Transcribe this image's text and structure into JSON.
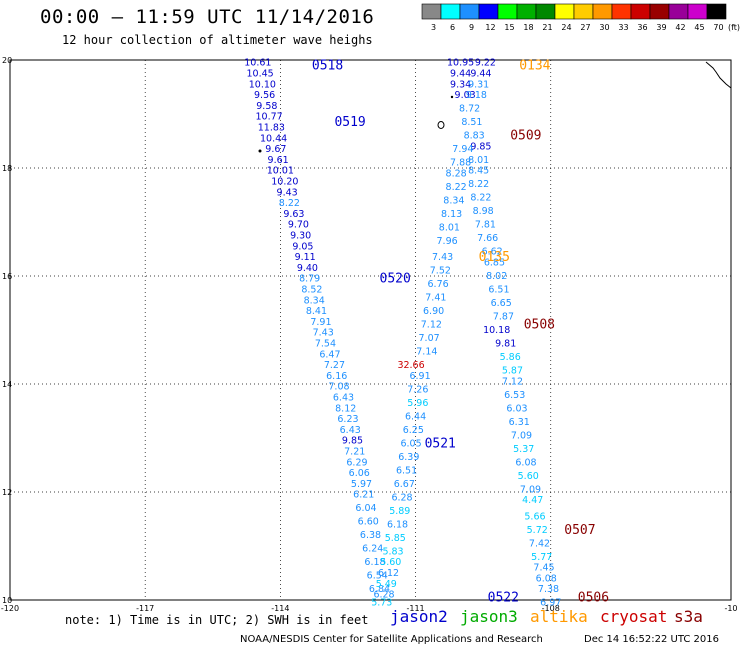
{
  "header": {
    "title": "00:00 – 11:59 UTC 11/14/2016",
    "subtitle": "12 hour collection of altimeter wave heighs"
  },
  "colorbar": {
    "unit": "(ft)",
    "bins": [
      {
        "label": "3",
        "color": "#888888"
      },
      {
        "label": "6",
        "color": "#00ffff"
      },
      {
        "label": "9",
        "color": "#1e90ff"
      },
      {
        "label": "12",
        "color": "#0000ff"
      },
      {
        "label": "15",
        "color": "#00ff00"
      },
      {
        "label": "18",
        "color": "#00b000"
      },
      {
        "label": "21",
        "color": "#008800"
      },
      {
        "label": "24",
        "color": "#ffff00"
      },
      {
        "label": "27",
        "color": "#ffcc00"
      },
      {
        "label": "30",
        "color": "#ff9900"
      },
      {
        "label": "33",
        "color": "#ff3300"
      },
      {
        "label": "36",
        "color": "#cc0000"
      },
      {
        "label": "39",
        "color": "#990000"
      },
      {
        "label": "42",
        "color": "#990099"
      },
      {
        "label": "45",
        "color": "#cc00cc"
      },
      {
        "label": "70",
        "color": "#000000"
      }
    ]
  },
  "axes": {
    "lon_range": [
      -120,
      -104
    ],
    "lat_range": [
      10,
      20
    ],
    "lon_ticks": [
      "-120",
      "-117",
      "-114",
      "-111",
      "-108",
      "-10"
    ],
    "lat_ticks": [
      "20",
      "18",
      "16",
      "14",
      "12",
      "10"
    ]
  },
  "satellites": {
    "jason2": {
      "name": "jason2",
      "color": "#0000cc"
    },
    "jason3": {
      "name": "jason3",
      "color": "#00aa00"
    },
    "altika": {
      "name": "altika",
      "color": "#ff9900"
    },
    "cryosat": {
      "name": "cryosat",
      "color": "#cc0000"
    },
    "s3a": {
      "name": "s3a",
      "color": "#880000"
    }
  },
  "pass_labels": [
    {
      "text": "0518",
      "lon": -113.3,
      "lat": 19.9,
      "sat": "jason2"
    },
    {
      "text": "0519",
      "lon": -112.8,
      "lat": 18.85,
      "sat": "jason2"
    },
    {
      "text": "0520",
      "lon": -111.8,
      "lat": 15.95,
      "sat": "jason2"
    },
    {
      "text": "0521",
      "lon": -110.8,
      "lat": 12.9,
      "sat": "jason2"
    },
    {
      "text": "0522",
      "lon": -109.4,
      "lat": 10.05,
      "sat": "jason2"
    },
    {
      "text": "0134",
      "lon": -108.7,
      "lat": 19.9,
      "sat": "altika"
    },
    {
      "text": "0135",
      "lon": -109.6,
      "lat": 16.35,
      "sat": "altika"
    },
    {
      "text": "0509",
      "lon": -108.9,
      "lat": 18.6,
      "sat": "s3a"
    },
    {
      "text": "0508",
      "lon": -108.6,
      "lat": 15.1,
      "sat": "s3a"
    },
    {
      "text": "0507",
      "lon": -107.7,
      "lat": 11.3,
      "sat": "s3a"
    },
    {
      "text": "0506",
      "lon": -107.4,
      "lat": 10.05,
      "sat": "s3a"
    }
  ],
  "tracks": [
    {
      "name": "jason2-descending",
      "points": [
        {
          "v": "10.61",
          "lon": -114.5,
          "lat": 19.95,
          "c": "#0000cc"
        },
        {
          "v": "10.45",
          "lon": -114.45,
          "lat": 19.75,
          "c": "#0000cc"
        },
        {
          "v": "10.10",
          "lon": -114.4,
          "lat": 19.55,
          "c": "#0000cc"
        },
        {
          "v": "9.56",
          "lon": -114.35,
          "lat": 19.35,
          "c": "#0000cc"
        },
        {
          "v": "9.58",
          "lon": -114.3,
          "lat": 19.15,
          "c": "#0000cc"
        },
        {
          "v": "10.77",
          "lon": -114.25,
          "lat": 18.95,
          "c": "#0000cc"
        },
        {
          "v": "11.83",
          "lon": -114.2,
          "lat": 18.75,
          "c": "#0000cc"
        },
        {
          "v": "10.44",
          "lon": -114.15,
          "lat": 18.55,
          "c": "#0000cc"
        },
        {
          "v": "9.67",
          "lon": -114.1,
          "lat": 18.35,
          "c": "#0000cc"
        },
        {
          "v": "9.61",
          "lon": -114.05,
          "lat": 18.15,
          "c": "#0000cc"
        },
        {
          "v": "10.01",
          "lon": -114.0,
          "lat": 17.95,
          "c": "#0000cc"
        },
        {
          "v": "10.20",
          "lon": -113.9,
          "lat": 17.75,
          "c": "#0000cc"
        },
        {
          "v": "9.43",
          "lon": -113.85,
          "lat": 17.55,
          "c": "#0000cc"
        },
        {
          "v": "8.22",
          "lon": -113.8,
          "lat": 17.35,
          "c": "#1e90ff"
        },
        {
          "v": "9.63",
          "lon": -113.7,
          "lat": 17.15,
          "c": "#0000cc"
        },
        {
          "v": "9.70",
          "lon": -113.6,
          "lat": 16.95,
          "c": "#0000cc"
        },
        {
          "v": "9.30",
          "lon": -113.55,
          "lat": 16.75,
          "c": "#0000cc"
        },
        {
          "v": "9.05",
          "lon": -113.5,
          "lat": 16.55,
          "c": "#0000cc"
        },
        {
          "v": "9.11",
          "lon": -113.45,
          "lat": 16.35,
          "c": "#0000cc"
        },
        {
          "v": "9.40",
          "lon": -113.4,
          "lat": 16.15,
          "c": "#0000cc"
        },
        {
          "v": "8.79",
          "lon": -113.35,
          "lat": 15.95,
          "c": "#1e90ff"
        },
        {
          "v": "8.52",
          "lon": -113.3,
          "lat": 15.75,
          "c": "#1e90ff"
        },
        {
          "v": "8.34",
          "lon": -113.25,
          "lat": 15.55,
          "c": "#1e90ff"
        },
        {
          "v": "8.41",
          "lon": -113.2,
          "lat": 15.35,
          "c": "#1e90ff"
        },
        {
          "v": "7.91",
          "lon": -113.1,
          "lat": 15.15,
          "c": "#1e90ff"
        },
        {
          "v": "7.43",
          "lon": -113.05,
          "lat": 14.95,
          "c": "#1e90ff"
        },
        {
          "v": "7.54",
          "lon": -113.0,
          "lat": 14.75,
          "c": "#1e90ff"
        },
        {
          "v": "6.47",
          "lon": -112.9,
          "lat": 14.55,
          "c": "#1e90ff"
        },
        {
          "v": "7.27",
          "lon": -112.8,
          "lat": 14.35,
          "c": "#1e90ff"
        },
        {
          "v": "6.16",
          "lon": -112.75,
          "lat": 14.15,
          "c": "#1e90ff"
        },
        {
          "v": "7.08",
          "lon": -112.7,
          "lat": 13.95,
          "c": "#1e90ff"
        },
        {
          "v": "6.43",
          "lon": -112.6,
          "lat": 13.75,
          "c": "#1e90ff"
        },
        {
          "v": "8.12",
          "lon": -112.55,
          "lat": 13.55,
          "c": "#1e90ff"
        },
        {
          "v": "6.23",
          "lon": -112.5,
          "lat": 13.35,
          "c": "#1e90ff"
        },
        {
          "v": "6.43",
          "lon": -112.45,
          "lat": 13.15,
          "c": "#1e90ff"
        },
        {
          "v": "9.85",
          "lon": -112.4,
          "lat": 12.95,
          "c": "#0000cc"
        },
        {
          "v": "7.21",
          "lon": -112.35,
          "lat": 12.75,
          "c": "#1e90ff"
        },
        {
          "v": "6.29",
          "lon": -112.3,
          "lat": 12.55,
          "c": "#1e90ff"
        },
        {
          "v": "6.06",
          "lon": -112.25,
          "lat": 12.35,
          "c": "#1e90ff"
        },
        {
          "v": "5.97",
          "lon": -112.2,
          "lat": 12.15,
          "c": "#1e90ff"
        },
        {
          "v": "6.21",
          "lon": -112.15,
          "lat": 11.95,
          "c": "#1e90ff"
        },
        {
          "v": "6.04",
          "lon": -112.1,
          "lat": 11.7,
          "c": "#1e90ff"
        },
        {
          "v": "6.60",
          "lon": -112.05,
          "lat": 11.45,
          "c": "#1e90ff"
        },
        {
          "v": "6.38",
          "lon": -112.0,
          "lat": 11.2,
          "c": "#1e90ff"
        },
        {
          "v": "6.24",
          "lon": -111.95,
          "lat": 10.95,
          "c": "#1e90ff"
        },
        {
          "v": "6.18",
          "lon": -111.9,
          "lat": 10.7,
          "c": "#1e90ff"
        },
        {
          "v": "6.54",
          "lon": -111.85,
          "lat": 10.45,
          "c": "#1e90ff"
        },
        {
          "v": "6.84",
          "lon": -111.8,
          "lat": 10.2,
          "c": "#1e90ff"
        }
      ]
    },
    {
      "name": "altika-track",
      "points": [
        {
          "v": "10.95",
          "lon": -110.0,
          "lat": 19.95,
          "c": "#0000cc"
        },
        {
          "v": "9.22",
          "lon": -109.45,
          "lat": 19.95,
          "c": "#0000cc"
        },
        {
          "v": "9.44",
          "lon": -110.0,
          "lat": 19.75,
          "c": "#0000cc"
        },
        {
          "v": "9.44",
          "lon": -109.55,
          "lat": 19.75,
          "c": "#0000cc"
        },
        {
          "v": "9.34",
          "lon": -110.0,
          "lat": 19.55,
          "c": "#0000cc"
        },
        {
          "v": "9.31",
          "lon": -109.6,
          "lat": 19.55,
          "c": "#1e90ff"
        },
        {
          "v": "9.03",
          "lon": -109.9,
          "lat": 19.35,
          "c": "#0000cc"
        },
        {
          "v": "9.18",
          "lon": -109.65,
          "lat": 19.35,
          "c": "#1e90ff"
        },
        {
          "v": "8.72",
          "lon": -109.8,
          "lat": 19.1,
          "c": "#1e90ff"
        },
        {
          "v": "8.51",
          "lon": -109.75,
          "lat": 18.85,
          "c": "#1e90ff"
        },
        {
          "v": "8.83",
          "lon": -109.7,
          "lat": 18.6,
          "c": "#1e90ff"
        },
        {
          "v": "9.85",
          "lon": -109.55,
          "lat": 18.4,
          "c": "#0000cc"
        },
        {
          "v": "7.94",
          "lon": -109.95,
          "lat": 18.35,
          "c": "#1e90ff"
        },
        {
          "v": "8.01",
          "lon": -109.6,
          "lat": 18.15,
          "c": "#1e90ff"
        },
        {
          "v": "7.88",
          "lon": -110.0,
          "lat": 18.1,
          "c": "#1e90ff"
        },
        {
          "v": "8.45",
          "lon": -109.6,
          "lat": 17.95,
          "c": "#1e90ff"
        },
        {
          "v": "8.28",
          "lon": -110.1,
          "lat": 17.9,
          "c": "#1e90ff"
        },
        {
          "v": "8.22",
          "lon": -109.6,
          "lat": 17.7,
          "c": "#1e90ff"
        },
        {
          "v": "8.22",
          "lon": -110.1,
          "lat": 17.65,
          "c": "#1e90ff"
        },
        {
          "v": "8.22",
          "lon": -109.55,
          "lat": 17.45,
          "c": "#1e90ff"
        },
        {
          "v": "8.34",
          "lon": -110.15,
          "lat": 17.4,
          "c": "#1e90ff"
        },
        {
          "v": "8.98",
          "lon": -109.5,
          "lat": 17.2,
          "c": "#1e90ff"
        },
        {
          "v": "8.13",
          "lon": -110.2,
          "lat": 17.15,
          "c": "#1e90ff"
        },
        {
          "v": "7.81",
          "lon": -109.45,
          "lat": 16.95,
          "c": "#1e90ff"
        },
        {
          "v": "8.01",
          "lon": -110.25,
          "lat": 16.9,
          "c": "#1e90ff"
        },
        {
          "v": "7.66",
          "lon": -109.4,
          "lat": 16.7,
          "c": "#1e90ff"
        },
        {
          "v": "7.96",
          "lon": -110.3,
          "lat": 16.65,
          "c": "#1e90ff"
        },
        {
          "v": "6.62",
          "lon": -109.3,
          "lat": 16.45,
          "c": "#1e90ff"
        },
        {
          "v": "7.43",
          "lon": -110.4,
          "lat": 16.35,
          "c": "#1e90ff"
        },
        {
          "v": "6.85",
          "lon": -109.25,
          "lat": 16.25,
          "c": "#1e90ff"
        },
        {
          "v": "7.52",
          "lon": -110.45,
          "lat": 16.1,
          "c": "#1e90ff"
        },
        {
          "v": "8.02",
          "lon": -109.2,
          "lat": 16.0,
          "c": "#1e90ff"
        },
        {
          "v": "6.76",
          "lon": -110.5,
          "lat": 15.85,
          "c": "#1e90ff"
        },
        {
          "v": "6.51",
          "lon": -109.15,
          "lat": 15.75,
          "c": "#1e90ff"
        },
        {
          "v": "7.41",
          "lon": -110.55,
          "lat": 15.6,
          "c": "#1e90ff"
        },
        {
          "v": "6.65",
          "lon": -109.1,
          "lat": 15.5,
          "c": "#1e90ff"
        },
        {
          "v": "6.90",
          "lon": -110.6,
          "lat": 15.35,
          "c": "#1e90ff"
        },
        {
          "v": "7.87",
          "lon": -109.05,
          "lat": 15.25,
          "c": "#1e90ff"
        },
        {
          "v": "7.12",
          "lon": -110.65,
          "lat": 15.1,
          "c": "#1e90ff"
        },
        {
          "v": "10.18",
          "lon": -109.2,
          "lat": 15.0,
          "c": "#0000cc"
        },
        {
          "v": "7.07",
          "lon": -110.7,
          "lat": 14.85,
          "c": "#1e90ff"
        },
        {
          "v": "9.81",
          "lon": -109.0,
          "lat": 14.75,
          "c": "#0000cc"
        },
        {
          "v": "7.14",
          "lon": -110.75,
          "lat": 14.6,
          "c": "#1e90ff"
        },
        {
          "v": "5.86",
          "lon": -108.9,
          "lat": 14.5,
          "c": "#00ccff"
        },
        {
          "v": "32.66",
          "lon": -111.1,
          "lat": 14.35,
          "c": "#cc0000"
        },
        {
          "v": "5.87",
          "lon": -108.85,
          "lat": 14.25,
          "c": "#00ccff"
        },
        {
          "v": "6.91",
          "lon": -110.9,
          "lat": 14.15,
          "c": "#1e90ff"
        },
        {
          "v": "7.12",
          "lon": -108.85,
          "lat": 14.05,
          "c": "#1e90ff"
        },
        {
          "v": "7.26",
          "lon": -110.95,
          "lat": 13.9,
          "c": "#1e90ff"
        },
        {
          "v": "6.53",
          "lon": -108.8,
          "lat": 13.8,
          "c": "#1e90ff"
        },
        {
          "v": "5.96",
          "lon": -110.95,
          "lat": 13.65,
          "c": "#00ccff"
        },
        {
          "v": "6.03",
          "lon": -108.75,
          "lat": 13.55,
          "c": "#1e90ff"
        },
        {
          "v": "6.44",
          "lon": -111.0,
          "lat": 13.4,
          "c": "#1e90ff"
        },
        {
          "v": "6.31",
          "lon": -108.7,
          "lat": 13.3,
          "c": "#1e90ff"
        },
        {
          "v": "6.25",
          "lon": -111.05,
          "lat": 13.15,
          "c": "#1e90ff"
        },
        {
          "v": "7.09",
          "lon": -108.65,
          "lat": 13.05,
          "c": "#1e90ff"
        },
        {
          "v": "6.05",
          "lon": -111.1,
          "lat": 12.9,
          "c": "#1e90ff"
        },
        {
          "v": "5.37",
          "lon": -108.6,
          "lat": 12.8,
          "c": "#00ccff"
        },
        {
          "v": "6.39",
          "lon": -111.15,
          "lat": 12.65,
          "c": "#1e90ff"
        },
        {
          "v": "6.08",
          "lon": -108.55,
          "lat": 12.55,
          "c": "#1e90ff"
        },
        {
          "v": "6.51",
          "lon": -111.2,
          "lat": 12.4,
          "c": "#1e90ff"
        },
        {
          "v": "5.60",
          "lon": -108.5,
          "lat": 12.3,
          "c": "#00ccff"
        },
        {
          "v": "6.67",
          "lon": -111.25,
          "lat": 12.15,
          "c": "#1e90ff"
        },
        {
          "v": "7.09",
          "lon": -108.45,
          "lat": 12.05,
          "c": "#1e90ff"
        },
        {
          "v": "6.28",
          "lon": -111.3,
          "lat": 11.9,
          "c": "#1e90ff"
        },
        {
          "v": "4.47",
          "lon": -108.4,
          "lat": 11.85,
          "c": "#00ccff"
        },
        {
          "v": "5.89",
          "lon": -111.35,
          "lat": 11.65,
          "c": "#00ccff"
        },
        {
          "v": "5.66",
          "lon": -108.35,
          "lat": 11.55,
          "c": "#00ccff"
        },
        {
          "v": "6.18",
          "lon": -111.4,
          "lat": 11.4,
          "c": "#1e90ff"
        },
        {
          "v": "5.72",
          "lon": -108.3,
          "lat": 11.3,
          "c": "#00ccff"
        },
        {
          "v": "5.85",
          "lon": -111.45,
          "lat": 11.15,
          "c": "#00ccff"
        },
        {
          "v": "7.42",
          "lon": -108.25,
          "lat": 11.05,
          "c": "#1e90ff"
        },
        {
          "v": "5.83",
          "lon": -111.5,
          "lat": 10.9,
          "c": "#00ccff"
        },
        {
          "v": "5.77",
          "lon": -108.2,
          "lat": 10.8,
          "c": "#00ccff"
        },
        {
          "v": "5.60",
          "lon": -111.55,
          "lat": 10.7,
          "c": "#00ccff"
        },
        {
          "v": "7.45",
          "lon": -108.15,
          "lat": 10.6,
          "c": "#1e90ff"
        },
        {
          "v": "6.12",
          "lon": -111.6,
          "lat": 10.5,
          "c": "#1e90ff"
        },
        {
          "v": "6.08",
          "lon": -108.1,
          "lat": 10.4,
          "c": "#1e90ff"
        },
        {
          "v": "5.49",
          "lon": -111.65,
          "lat": 10.3,
          "c": "#00ccff"
        },
        {
          "v": "7.38",
          "lon": -108.05,
          "lat": 10.2,
          "c": "#1e90ff"
        },
        {
          "v": "6.28",
          "lon": -111.7,
          "lat": 10.1,
          "c": "#1e90ff"
        },
        {
          "v": "5.73",
          "lon": -111.75,
          "lat": 9.95,
          "c": "#00ccff"
        },
        {
          "v": "6.97",
          "lon": -108.0,
          "lat": 9.95,
          "c": "#1e90ff"
        }
      ]
    }
  ],
  "footer": {
    "note": "note: 1) Time is in UTC; 2) SWH is in feet",
    "credit": "NOAA/NESDIS Center for Satellite Applications and Research",
    "timestamp": "Dec 14 16:52:22 UTC 2016"
  }
}
